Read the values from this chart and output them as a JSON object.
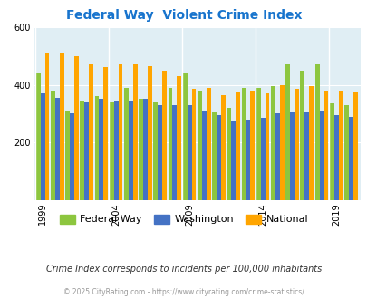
{
  "title": "Federal Way  Violent Crime Index",
  "years": [
    1999,
    2000,
    2001,
    2002,
    2003,
    2004,
    2005,
    2006,
    2007,
    2008,
    2009,
    2010,
    2011,
    2012,
    2013,
    2014,
    2015,
    2016,
    2017,
    2018,
    2019,
    2020
  ],
  "federal_way": [
    440,
    380,
    310,
    345,
    360,
    340,
    390,
    350,
    340,
    390,
    440,
    380,
    305,
    320,
    390,
    390,
    395,
    470,
    450,
    470,
    335,
    330
  ],
  "washington": [
    370,
    355,
    300,
    340,
    350,
    345,
    345,
    350,
    330,
    330,
    330,
    310,
    295,
    275,
    280,
    285,
    300,
    305,
    305,
    310,
    295,
    290
  ],
  "national": [
    510,
    510,
    500,
    470,
    460,
    470,
    470,
    465,
    450,
    430,
    385,
    390,
    365,
    375,
    380,
    370,
    400,
    385,
    395,
    380,
    380,
    375
  ],
  "colors": {
    "federal_way": "#8DC63F",
    "washington": "#4472C4",
    "national": "#FFA500"
  },
  "ylim": [
    0,
    600
  ],
  "yticks": [
    200,
    400,
    600
  ],
  "bg_color": "#E8F4F8",
  "plot_bg": "#E0EEF4",
  "subtitle": "Crime Index corresponds to incidents per 100,000 inhabitants",
  "footer": "© 2025 CityRating.com - https://www.cityrating.com/crime-statistics/",
  "xlabel_ticks": [
    1999,
    2004,
    2009,
    2014,
    2019
  ],
  "legend_labels": [
    "Federal Way",
    "Washington",
    "National"
  ]
}
